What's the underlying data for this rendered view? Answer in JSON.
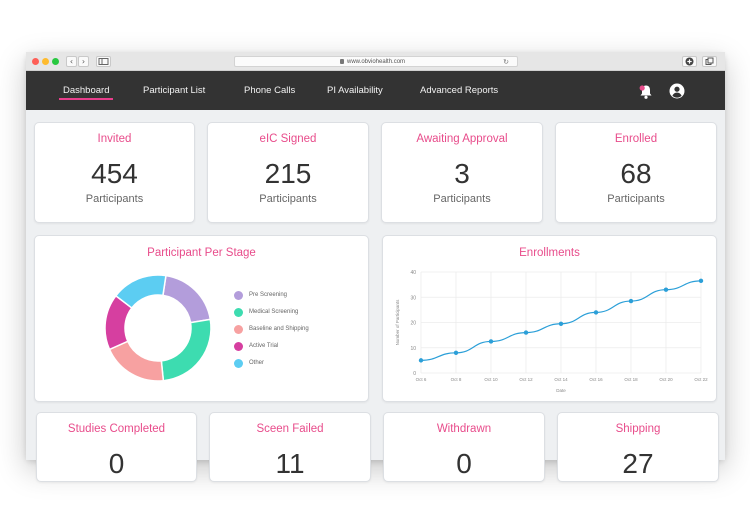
{
  "browser": {
    "url": "www.obviohealth.com",
    "back": "‹",
    "forward": "›",
    "reload": "↻"
  },
  "nav": {
    "items": [
      "Dashboard",
      "Participant List",
      "Phone Calls",
      "PI Availability",
      "Advanced Reports"
    ],
    "active": "Dashboard"
  },
  "colors": {
    "accent": "#e84c8b",
    "nav_bg": "#333333",
    "line": "#2b9fd8"
  },
  "stats_top": [
    {
      "title": "Invited",
      "value": "454",
      "unit": "Participants"
    },
    {
      "title": "eIC Signed",
      "value": "215",
      "unit": "Participants"
    },
    {
      "title": "Awaiting Approval",
      "value": "3",
      "unit": "Participants"
    },
    {
      "title": "Enrolled",
      "value": "68",
      "unit": "Participants"
    }
  ],
  "stats_bottom": [
    {
      "title": "Studies Completed",
      "value": "0"
    },
    {
      "title": "Sceen Failed",
      "value": "11"
    },
    {
      "title": "Withdrawn",
      "value": "0"
    },
    {
      "title": "Shipping",
      "value": "27"
    }
  ],
  "chart_data": [
    {
      "type": "pie",
      "title": "Participant Per Stage",
      "legend_position": "right",
      "categories": [
        "Pre Screening",
        "Medical Screening",
        "Baseline and Shipping",
        "Active Trial",
        "Other"
      ],
      "values": [
        20,
        26,
        20,
        17,
        17
      ],
      "colors": [
        "#b39ddb",
        "#3ddcb0",
        "#f7a1a1",
        "#d63fa0",
        "#5ccdf2"
      ]
    },
    {
      "type": "line",
      "title": "Enrollments",
      "xlabel": "Date",
      "ylabel": "Number of Participants",
      "x": [
        "Oct 6",
        "Oct 8",
        "Oct 10",
        "Oct 12",
        "Oct 14",
        "Oct 16",
        "Oct 18",
        "Oct 20",
        "Oct 22"
      ],
      "y": [
        5,
        8,
        12.5,
        16,
        19.5,
        24,
        28.5,
        33,
        36.5
      ],
      "ylim": [
        0,
        40
      ],
      "yticks": [
        "0",
        "10",
        "20",
        "30",
        "40"
      ],
      "grid": true
    }
  ]
}
